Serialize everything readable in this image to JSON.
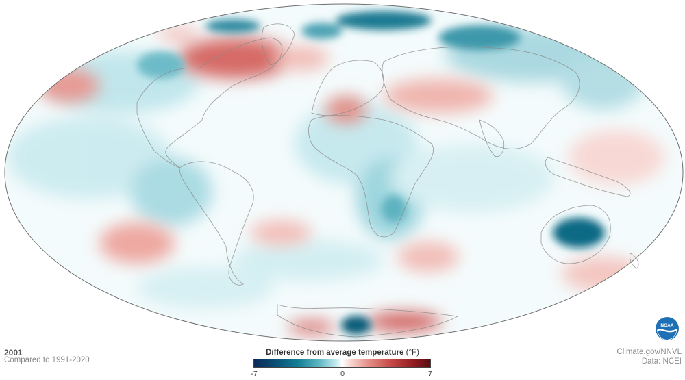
{
  "map": {
    "year": "2001",
    "comparison": "Compared to 1991-2020",
    "projection": "Hammer (global, elliptical)",
    "colors": {
      "cold_extreme": "#0b2a57",
      "cold": "#137f96",
      "neutral": "#ffffff",
      "warm": "#c54745",
      "warm_extreme": "#5a0b10",
      "coastline": "#8a8a8a"
    }
  },
  "legend": {
    "title": "Difference from average temperature",
    "unit": "(°F)",
    "min_label": "-7",
    "mid_label": "0",
    "max_label": "7"
  },
  "credits": {
    "source": "Climate.gov/NNVL",
    "data": "Data: NCEI",
    "logo_text": "NOAA"
  }
}
